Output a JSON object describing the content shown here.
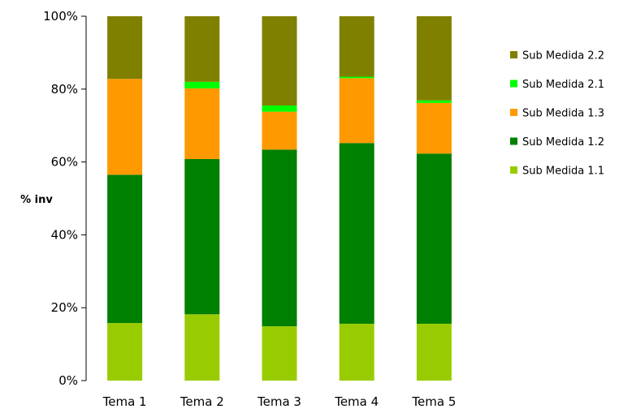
{
  "chart_data": {
    "type": "bar",
    "stacked": true,
    "percent_stacked": true,
    "categories": [
      "Tema 1",
      "Tema 2",
      "Tema 3",
      "Tema 4",
      "Tema 5"
    ],
    "series": [
      {
        "name": "Sub Medida 1.1",
        "color": "#99cc00",
        "values": [
          15.8,
          18.2,
          14.9,
          15.6,
          15.6
        ]
      },
      {
        "name": "Sub Medida 1.2",
        "color": "#008000",
        "values": [
          40.7,
          42.6,
          48.5,
          49.6,
          46.7
        ]
      },
      {
        "name": "Sub Medida 1.3",
        "color": "#ff9900",
        "values": [
          26.3,
          19.4,
          10.4,
          17.8,
          13.9
        ]
      },
      {
        "name": "Sub Medida 2.1",
        "color": "#00ff00",
        "values": [
          0.0,
          1.8,
          1.7,
          0.4,
          0.7
        ]
      },
      {
        "name": "Sub Medida 2.2",
        "color": "#808000",
        "values": [
          17.2,
          18.0,
          24.5,
          16.6,
          23.1
        ]
      }
    ],
    "ylabel": "% inv",
    "xlabel": "",
    "title": "",
    "ylim": [
      0,
      100
    ],
    "yticks": [
      "0%",
      "20%",
      "40%",
      "60%",
      "80%",
      "100%"
    ],
    "legend_position": "right",
    "legend_order": [
      "Sub Medida 2.2",
      "Sub Medida 2.1",
      "Sub Medida 1.3",
      "Sub Medida 1.2",
      "Sub Medida 1.1"
    ],
    "grid": false
  }
}
